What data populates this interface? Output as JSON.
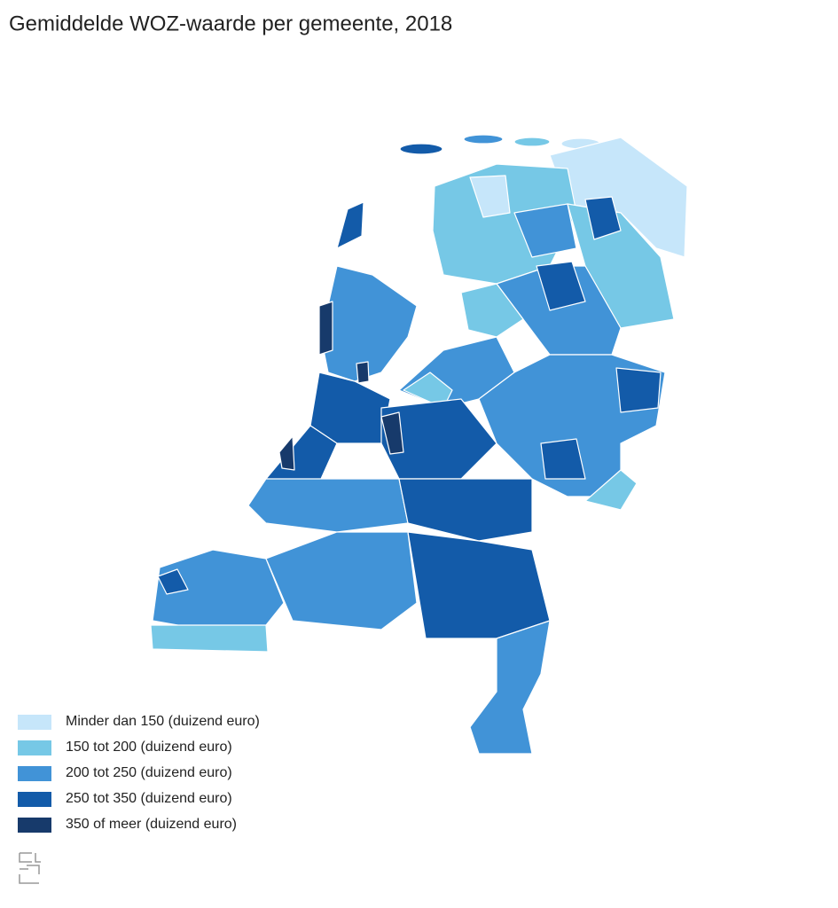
{
  "title": "Gemiddelde WOZ-waarde per gemeente, 2018",
  "legend": [
    {
      "label": "Minder dan 150 (duizend euro)",
      "color": "#c6e6fa"
    },
    {
      "label": "150 tot 200 (duizend euro)",
      "color": "#76c8e6"
    },
    {
      "label": "200 tot 250 (duizend euro)",
      "color": "#4193d7"
    },
    {
      "label": "250 tot 350 (duizend euro)",
      "color": "#135ba9"
    },
    {
      "label": "350 of meer (duizend euro)",
      "color": "#173a6b"
    }
  ]
}
